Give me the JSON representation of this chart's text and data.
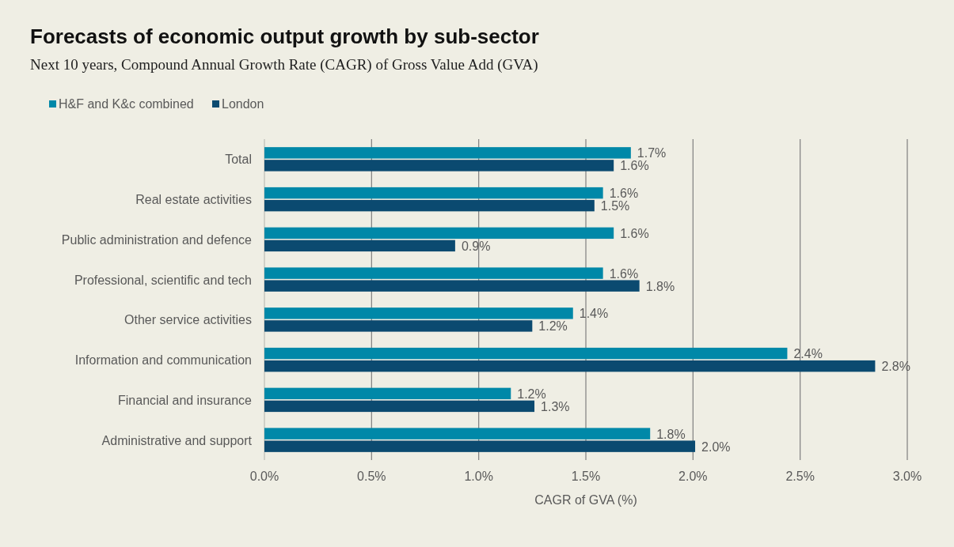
{
  "chart_data": {
    "type": "bar",
    "orientation": "horizontal",
    "title": "Forecasts of economic output growth by sub-sector",
    "subtitle": "Next 10 years, Compound Annual Growth Rate (CAGR) of Gross Value Add (GVA)",
    "xlabel": "CAGR of GVA (%)",
    "categories": [
      "Total",
      "Real estate activities",
      "Public administration and defence",
      "Professional, scientific and tech",
      "Other service activities",
      "Information and communication",
      "Financial and insurance",
      "Administrative and support"
    ],
    "series": [
      {
        "name": "H&F and K&c combined",
        "color": "#0088a8",
        "values": [
          1.71,
          1.58,
          1.63,
          1.58,
          1.44,
          2.44,
          1.15,
          1.8
        ],
        "value_labels": [
          "1.7%",
          "1.6%",
          "1.6%",
          "1.6%",
          "1.4%",
          "2.4%",
          "1.2%",
          "1.8%"
        ]
      },
      {
        "name": "London",
        "color": "#0b4a70",
        "values": [
          1.63,
          1.54,
          0.89,
          1.75,
          1.25,
          2.85,
          1.26,
          2.01
        ],
        "value_labels": [
          "1.6%",
          "1.5%",
          "0.9%",
          "1.8%",
          "1.2%",
          "2.8%",
          "1.3%",
          "2.0%"
        ]
      }
    ],
    "xlim": [
      0,
      3
    ],
    "xticks": [
      {
        "value": 0,
        "label": "0.0%"
      },
      {
        "value": 0.5,
        "label": "0.5%"
      },
      {
        "value": 1,
        "label": "1.0%"
      },
      {
        "value": 1.5,
        "label": "1.5%"
      },
      {
        "value": 2,
        "label": "2.0%"
      },
      {
        "value": 2.5,
        "label": "2.5%"
      },
      {
        "value": 3,
        "label": "3.0%"
      }
    ],
    "grid": "x",
    "legend": "top left"
  }
}
